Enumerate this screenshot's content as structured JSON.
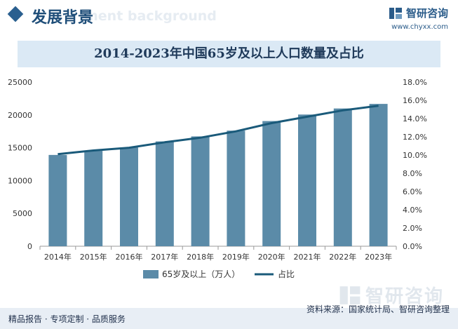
{
  "header": {
    "section_title": "发展背景",
    "section_ghost": "ment background",
    "brand_name": "智研咨询",
    "brand_url": "www.chyxx.com"
  },
  "chart_data": {
    "type": "bar+line",
    "title": "2014-2023年中国65岁及以上人口数量及占比",
    "categories": [
      "2014年",
      "2015年",
      "2016年",
      "2017年",
      "2018年",
      "2019年",
      "2020年",
      "2021年",
      "2022年",
      "2023年"
    ],
    "series": [
      {
        "name": "65岁及以上（万人）",
        "type": "bar",
        "axis": "left",
        "color": "#5b8ba8",
        "values": [
          13902,
          14524,
          15037,
          15961,
          16724,
          17603,
          19064,
          20056,
          20978,
          21676
        ]
      },
      {
        "name": "占比",
        "type": "line",
        "axis": "right",
        "color": "#1a5a7a",
        "values": [
          10.1,
          10.5,
          10.8,
          11.4,
          11.9,
          12.6,
          13.5,
          14.2,
          14.9,
          15.4
        ]
      }
    ],
    "y_left": {
      "min": 0,
      "max": 25000,
      "ticks": [
        "0",
        "5000",
        "10000",
        "15000",
        "20000",
        "25000"
      ]
    },
    "y_right": {
      "min": 0,
      "max": 18,
      "ticks": [
        "0.0%",
        "2.0%",
        "4.0%",
        "6.0%",
        "8.0%",
        "10.0%",
        "12.0%",
        "14.0%",
        "16.0%",
        "18.0%"
      ]
    },
    "legend_position": "bottom"
  },
  "footer": {
    "left_text": "精品报告 · 专项定制 · 品质服务",
    "source": "资料来源：国家统计局、智研咨询整理"
  }
}
